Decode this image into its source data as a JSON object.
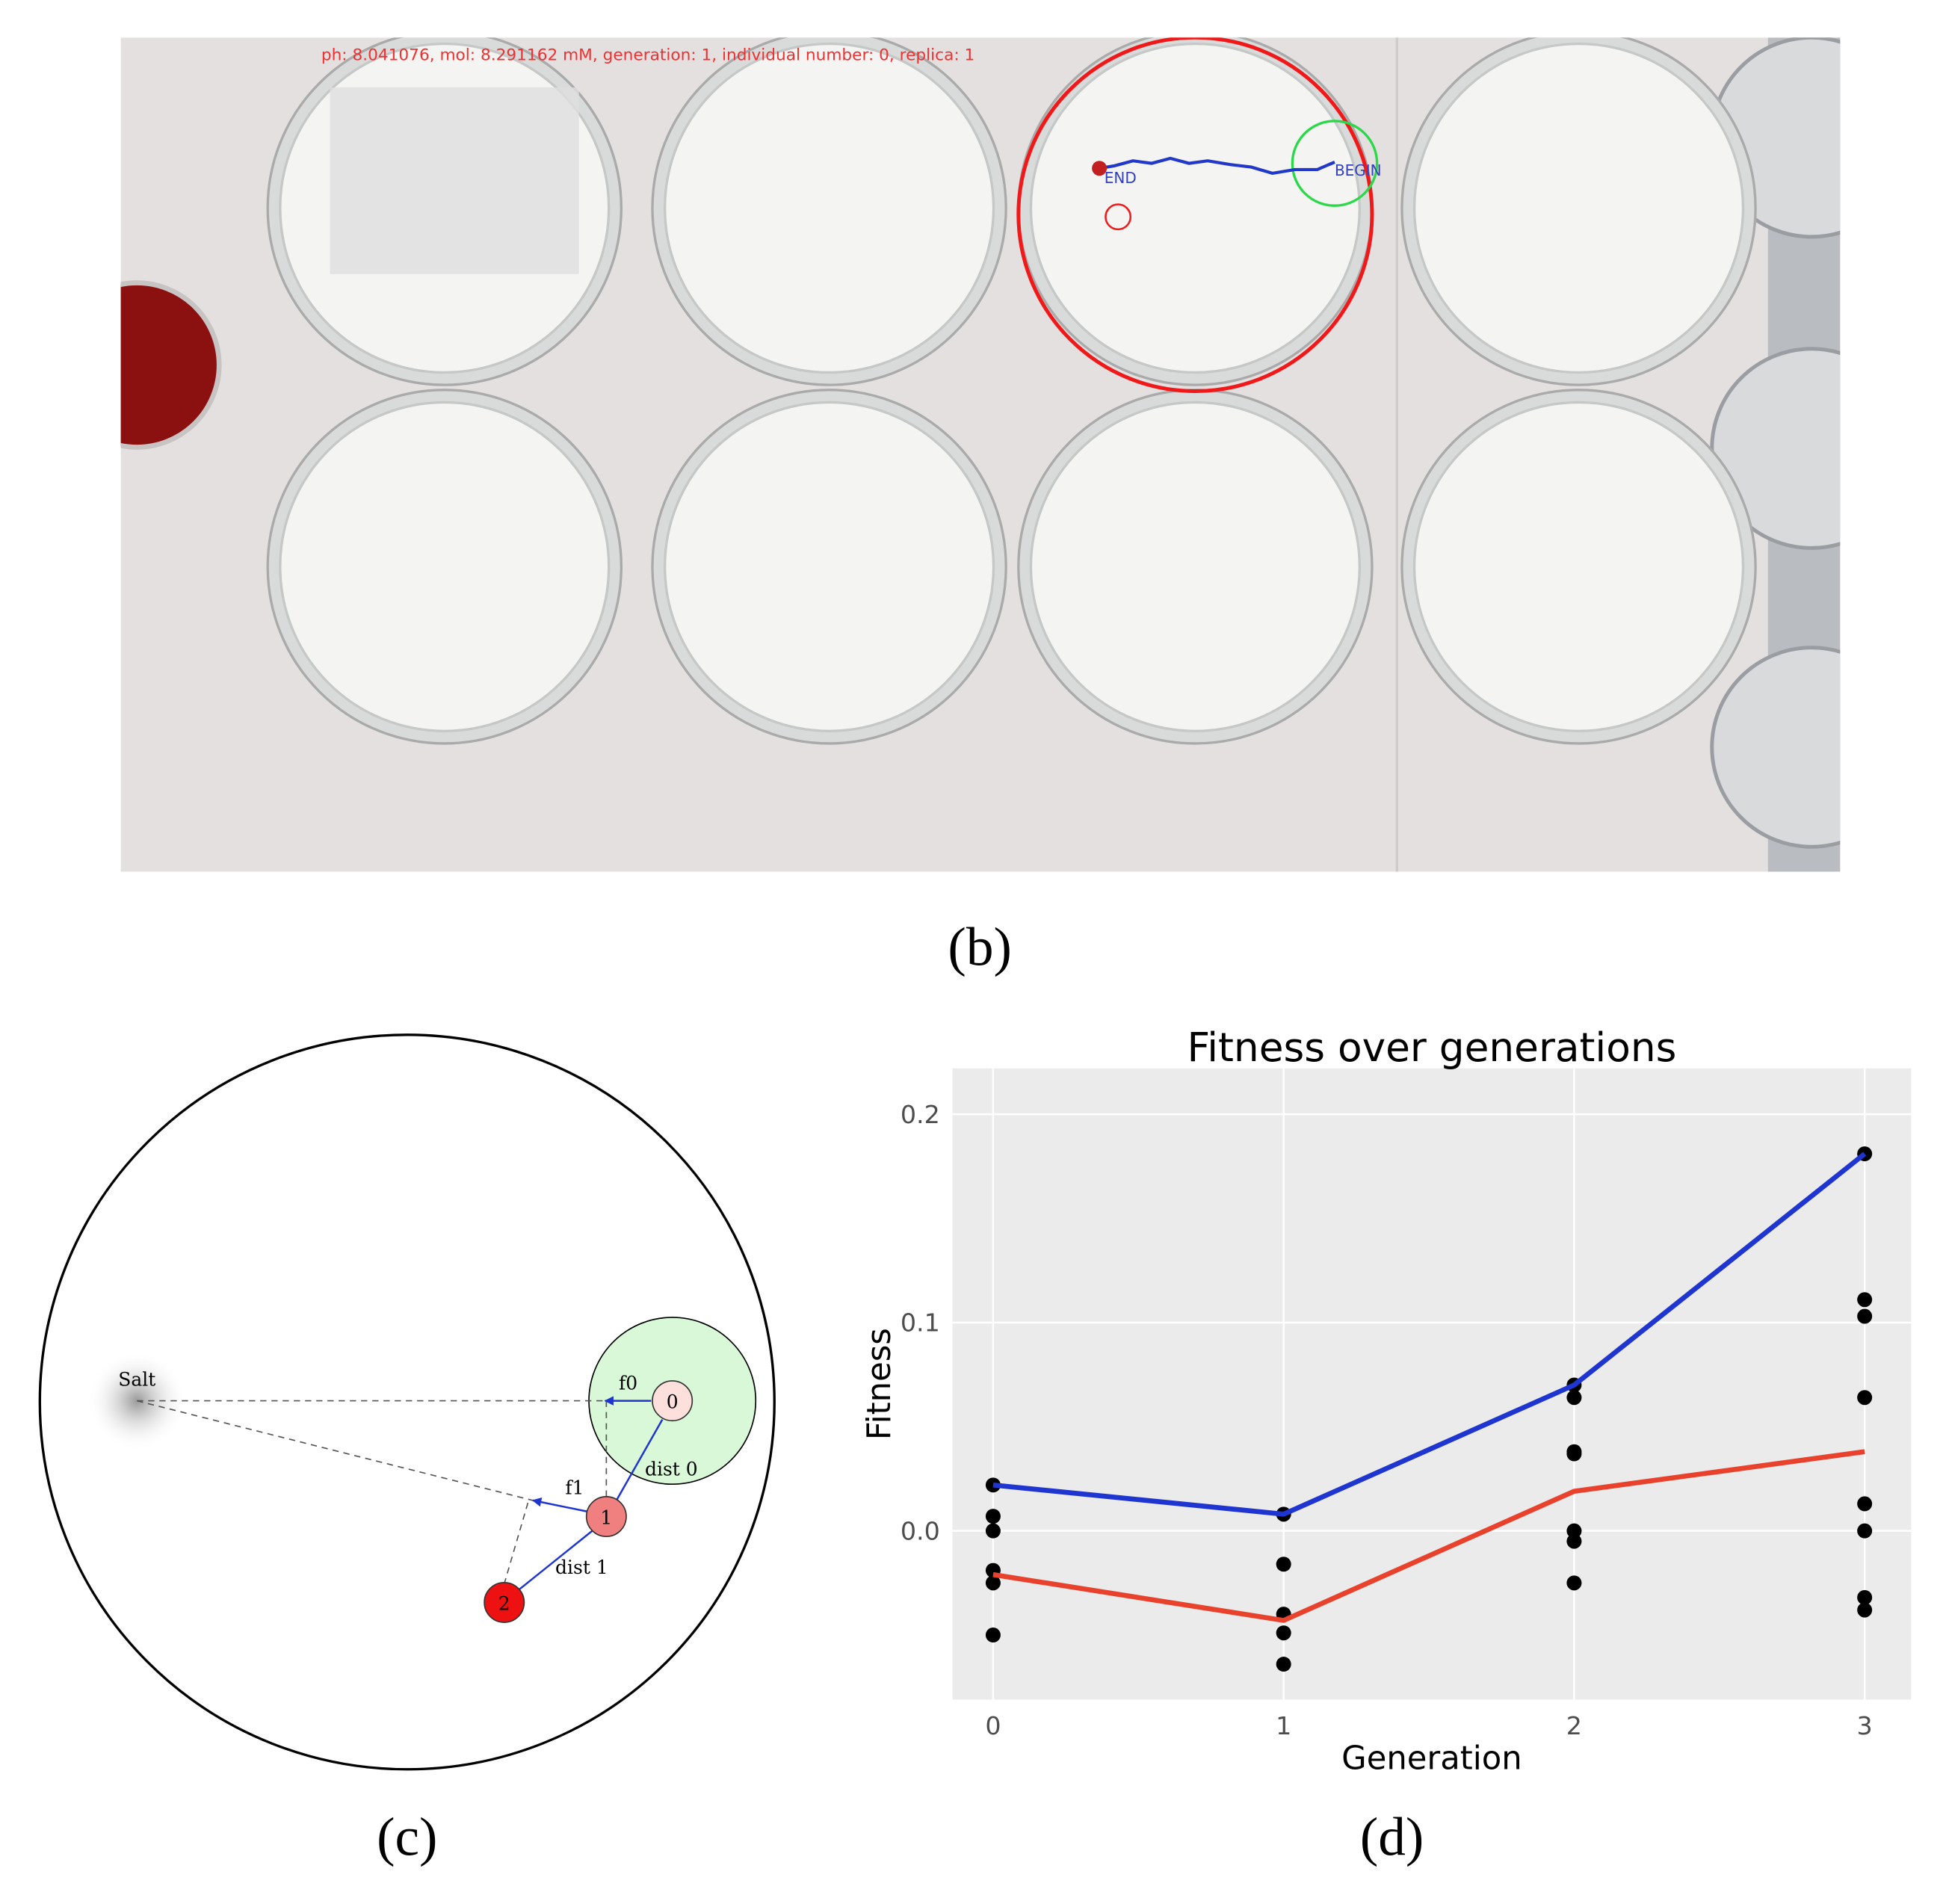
{
  "panel_b": {
    "overlay_text": "ph: 8.041076, mol: 8.291162 mM, generation: 1, individual number: 0, replica: 1",
    "end_label": "END",
    "begin_label": "BEGIN",
    "caption": "(b)"
  },
  "panel_c": {
    "salt": "Salt",
    "nodes": [
      "0",
      "1",
      "2"
    ],
    "forces": [
      "f0",
      "f1"
    ],
    "distances": [
      "dist 0",
      "dist 1"
    ],
    "caption": "(c)"
  },
  "panel_d": {
    "caption": "(d)"
  },
  "chart_data": {
    "type": "line",
    "title": "Fitness over generations",
    "x_label": "Generation",
    "y_label": "Fitness",
    "x": [
      0,
      1,
      2,
      3
    ],
    "series": [
      {
        "color": "#1f35d0",
        "values": [
          0.022,
          0.008,
          0.07,
          0.181
        ]
      },
      {
        "color": "#e8412c",
        "values": [
          -0.021,
          -0.043,
          0.019,
          0.038
        ]
      }
    ],
    "points": {
      "color": "#000000",
      "x": [
        0,
        0,
        0,
        0,
        0,
        0,
        1,
        1,
        1,
        1,
        1,
        2,
        2,
        2,
        2,
        2,
        2,
        2,
        3,
        3,
        3,
        3,
        3,
        3,
        3,
        3
      ],
      "y": [
        0.022,
        0.007,
        0,
        -0.019,
        -0.025,
        -0.05,
        0.008,
        -0.016,
        -0.04,
        -0.049,
        -0.064,
        0.07,
        0.064,
        0.038,
        0.037,
        0,
        -0.005,
        -0.025,
        0.181,
        0.111,
        0.103,
        0.064,
        0.013,
        0,
        -0.032,
        -0.038
      ]
    },
    "xlim": [
      -0.14,
      3.16
    ],
    "ylim": [
      -0.081,
      0.222
    ],
    "xticks": [
      0,
      1,
      2,
      3
    ],
    "yticks": [
      {
        "value": 0,
        "label": "0.0"
      },
      0.1,
      0.2
    ],
    "grid": true
  }
}
